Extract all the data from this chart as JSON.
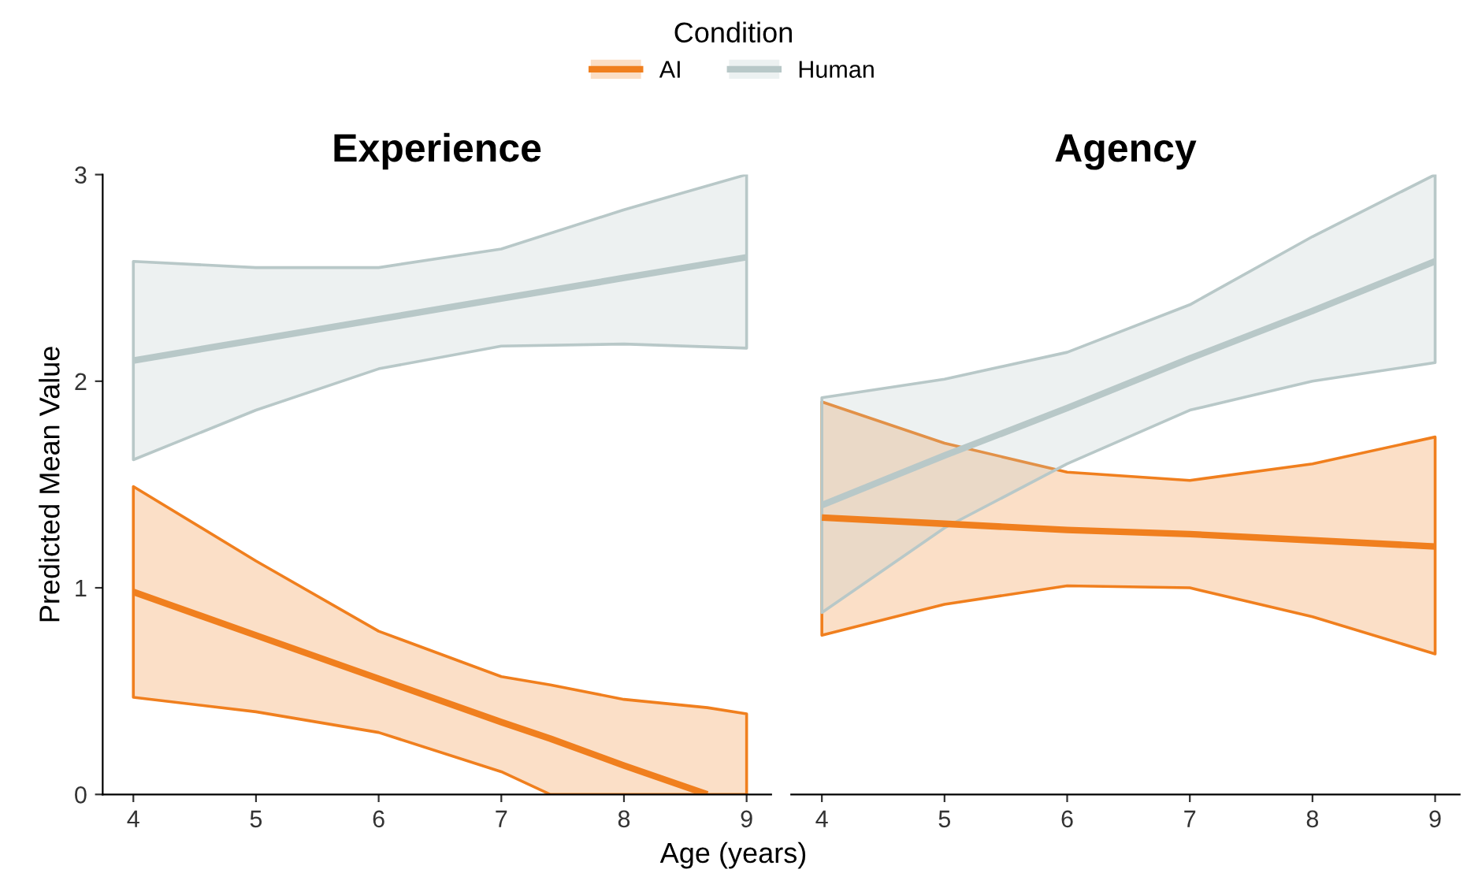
{
  "chart_data": [
    {
      "type": "line",
      "title": "Experience",
      "xlabel": "Age (years)",
      "ylabel": "Predicted Mean Value",
      "legend_title": "Condition",
      "legend": "top",
      "grid": false,
      "xlim": [
        3.75,
        9.2
      ],
      "xticks": [
        4,
        5,
        6,
        7,
        8,
        9
      ],
      "ylim": [
        0,
        3
      ],
      "yticks": [
        0,
        1,
        2,
        3
      ],
      "series": [
        {
          "name": "AI",
          "color": "#f07f1e",
          "x": [
            4,
            5,
            6,
            7,
            7.4,
            8,
            8.68,
            9
          ],
          "values": [
            0.98,
            0.77,
            0.56,
            0.35,
            0.27,
            0.14,
            0,
            null
          ],
          "upper": [
            1.49,
            1.13,
            0.79,
            0.57,
            0.53,
            0.46,
            0.42,
            0.39
          ],
          "lower": [
            0.47,
            0.4,
            0.3,
            0.11,
            0,
            0,
            0,
            0
          ]
        },
        {
          "name": "Human",
          "color": "#b8c8c8",
          "x": [
            4,
            5,
            6,
            7,
            8,
            9
          ],
          "values": [
            2.1,
            2.2,
            2.3,
            2.4,
            2.5,
            2.6
          ],
          "upper": [
            2.58,
            2.55,
            2.55,
            2.64,
            2.83,
            3.0
          ],
          "lower": [
            1.62,
            1.86,
            2.06,
            2.17,
            2.18,
            2.16
          ]
        }
      ]
    },
    {
      "type": "line",
      "title": "Agency",
      "tick_labels": "x",
      "grid": false,
      "xlim": [
        3.75,
        9.2
      ],
      "xticks": [
        4,
        5,
        6,
        7,
        8,
        9
      ],
      "ylim": [
        0,
        3
      ],
      "series": [
        {
          "name": "AI",
          "color": "#f07f1e",
          "x": [
            4,
            5,
            6,
            7,
            8,
            9
          ],
          "values": [
            1.34,
            1.31,
            1.28,
            1.26,
            1.23,
            1.2
          ],
          "upper": [
            1.9,
            1.7,
            1.56,
            1.52,
            1.6,
            1.73
          ],
          "lower": [
            0.77,
            0.92,
            1.01,
            1.0,
            0.86,
            0.68
          ]
        },
        {
          "name": "Human",
          "color": "#b8c8c8",
          "x": [
            4,
            5,
            6,
            7,
            8,
            9
          ],
          "values": [
            1.4,
            1.64,
            1.87,
            2.11,
            2.34,
            2.58
          ],
          "upper": [
            1.92,
            2.01,
            2.14,
            2.37,
            2.7,
            3.0
          ],
          "lower": [
            0.88,
            1.29,
            1.6,
            1.86,
            2.0,
            2.09
          ]
        }
      ]
    }
  ]
}
